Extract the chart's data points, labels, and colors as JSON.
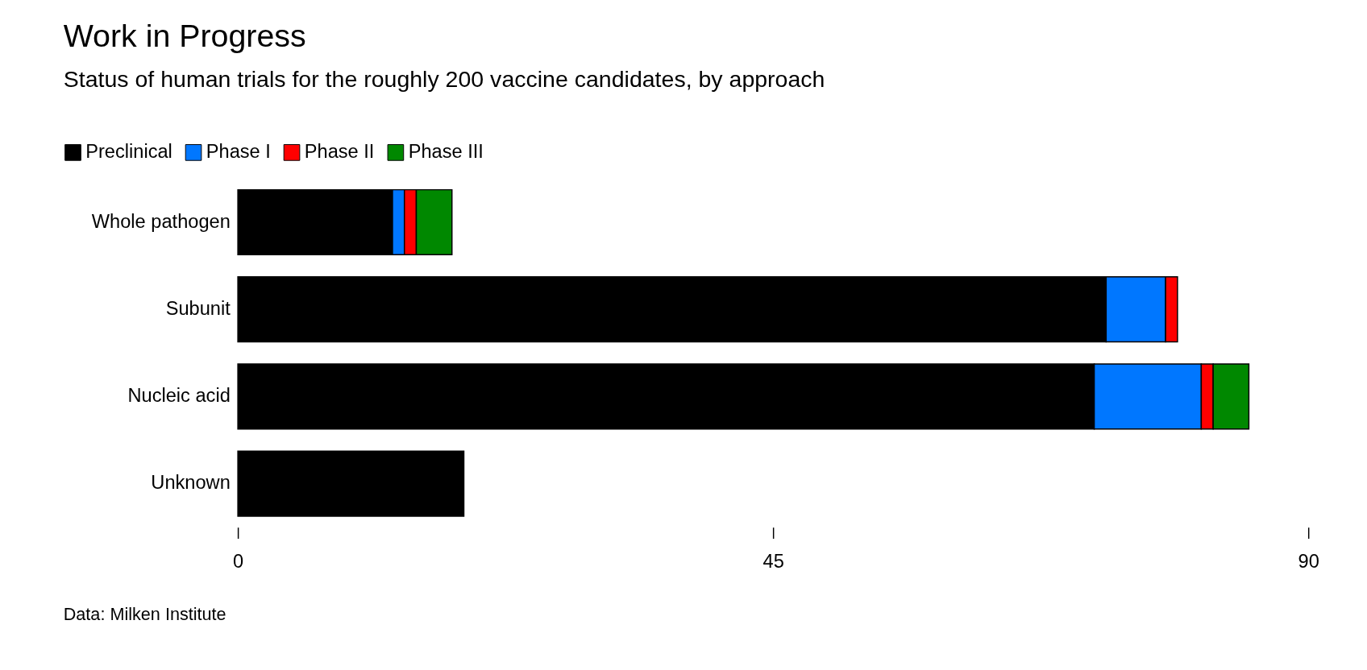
{
  "chart_data": {
    "type": "bar",
    "orientation": "horizontal",
    "stacked": true,
    "title": "Work in Progress",
    "subtitle": "Status of human trials for the roughly 200 vaccine candidates, by approach",
    "categories": [
      "Whole pathogen",
      "Subunit",
      "Nucleic acid",
      "Unknown"
    ],
    "series": [
      {
        "name": "Preclinical",
        "color": "#000000",
        "values": [
          13,
          73,
          72,
          19
        ]
      },
      {
        "name": "Phase I",
        "color": "#0077ff",
        "values": [
          1,
          5,
          9,
          0
        ]
      },
      {
        "name": "Phase II",
        "color": "#ff0000",
        "values": [
          1,
          1,
          1,
          0
        ]
      },
      {
        "name": "Phase III",
        "color": "#008800",
        "values": [
          3,
          0,
          3,
          0
        ]
      }
    ],
    "xlim": [
      0,
      90
    ],
    "xticks": [
      0,
      45,
      90
    ],
    "grid": false,
    "legend": "top left",
    "annotations": [
      "Data: Milken Institute"
    ]
  }
}
